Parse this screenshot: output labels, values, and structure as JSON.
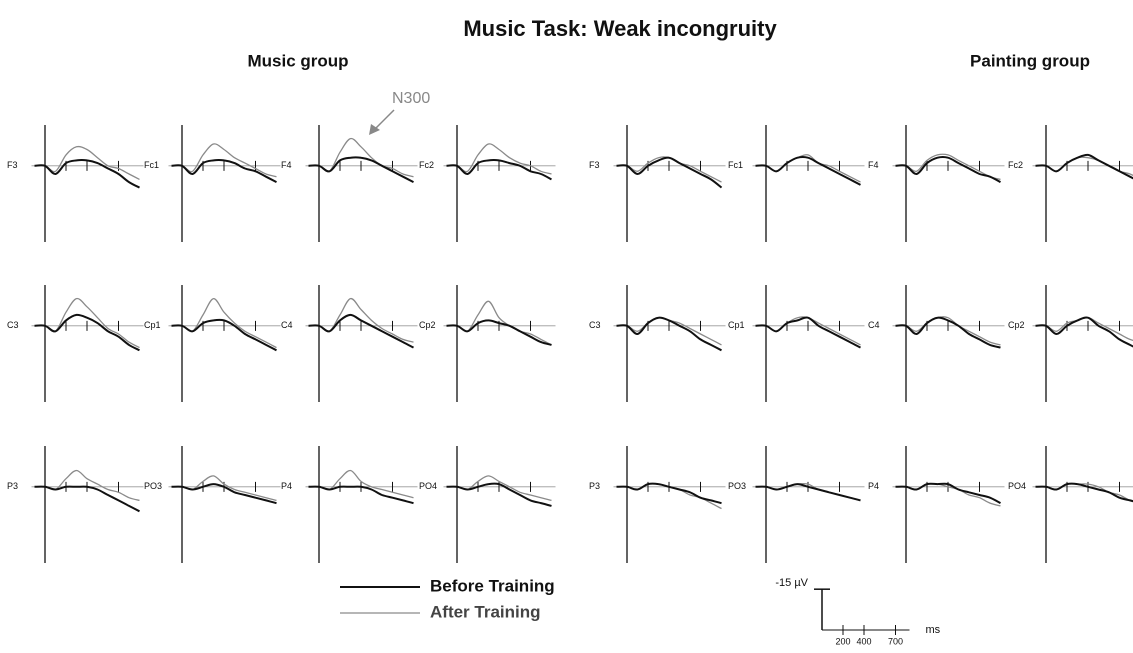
{
  "chart_data": {
    "type": "line",
    "title": "Music Task: Weak incongruity",
    "annotation": "N300",
    "x": [
      -100,
      0,
      100,
      200,
      300,
      400,
      500,
      600,
      700,
      800,
      900
    ],
    "xticks": [
      200,
      400,
      700
    ],
    "ylim": [
      28,
      -15
    ],
    "legend": [
      {
        "name": "Before Training",
        "color": "#111111"
      },
      {
        "name": "After Training",
        "color": "#8a8a8a"
      }
    ],
    "scale_bar": {
      "value": -15,
      "label": "-15 µV"
    },
    "x_unit": "ms",
    "groups": [
      {
        "title": "Music group",
        "panels": [
          {
            "label": "F3",
            "series": [
              {
                "values": [
                  0,
                  0,
                  3,
                  -1,
                  -2,
                  -2,
                  -1,
                  1,
                  3,
                  6,
                  8
                ]
              },
              {
                "values": [
                  0,
                  0,
                  2,
                  -4,
                  -7,
                  -6,
                  -3,
                  0,
                  1,
                  3,
                  5
                ]
              }
            ]
          },
          {
            "label": "Fc1",
            "series": [
              {
                "values": [
                  0,
                  0,
                  3,
                  -1,
                  -2,
                  -2,
                  -1,
                  1,
                  2,
                  4,
                  6
                ]
              },
              {
                "values": [
                  0,
                  0,
                  2,
                  -4,
                  -8,
                  -6,
                  -3,
                  -1,
                  1,
                  3,
                  4
                ]
              }
            ]
          },
          {
            "label": "F4",
            "series": [
              {
                "values": [
                  0,
                  0,
                  2,
                  -2,
                  -3,
                  -3,
                  -2,
                  0,
                  2,
                  4,
                  6
                ]
              },
              {
                "values": [
                  0,
                  0,
                  2,
                  -5,
                  -10,
                  -7,
                  -3,
                  0,
                  1,
                  3,
                  4
                ]
              }
            ]
          },
          {
            "label": "Fc2",
            "series": [
              {
                "values": [
                  0,
                  0,
                  3,
                  -1,
                  -2,
                  -2,
                  -1,
                  0,
                  2,
                  3,
                  5
                ]
              },
              {
                "values": [
                  0,
                  0,
                  2,
                  -4,
                  -8,
                  -6,
                  -3,
                  -1,
                  0,
                  2,
                  3
                ]
              }
            ]
          },
          {
            "label": "C3",
            "series": [
              {
                "values": [
                  0,
                  0,
                  2,
                  -2,
                  -4,
                  -3,
                  -1,
                  2,
                  4,
                  7,
                  9
                ]
              },
              {
                "values": [
                  0,
                  0,
                  2,
                  -5,
                  -10,
                  -7,
                  -3,
                  1,
                  3,
                  6,
                  8
                ]
              }
            ]
          },
          {
            "label": "Cp1",
            "series": [
              {
                "values": [
                  0,
                  0,
                  2,
                  -1,
                  -2,
                  -2,
                  0,
                  3,
                  5,
                  7,
                  9
                ]
              },
              {
                "values": [
                  0,
                  0,
                  2,
                  -4,
                  -10,
                  -5,
                  -1,
                  2,
                  4,
                  6,
                  8
                ]
              }
            ]
          },
          {
            "label": "C4",
            "series": [
              {
                "values": [
                  0,
                  0,
                  2,
                  -2,
                  -4,
                  -2,
                  0,
                  2,
                  4,
                  6,
                  8
                ]
              },
              {
                "values": [
                  0,
                  0,
                  2,
                  -4,
                  -10,
                  -6,
                  -2,
                  1,
                  3,
                  5,
                  6
                ]
              }
            ]
          },
          {
            "label": "Cp2",
            "series": [
              {
                "values": [
                  0,
                  0,
                  2,
                  -1,
                  -2,
                  -1,
                  0,
                  2,
                  4,
                  6,
                  7
                ]
              },
              {
                "values": [
                  0,
                  0,
                  2,
                  -4,
                  -9,
                  -3,
                  0,
                  2,
                  3,
                  5,
                  7
                ]
              }
            ]
          },
          {
            "label": "P3",
            "series": [
              {
                "values": [
                  0,
                  0,
                  1,
                  0,
                  0,
                  0,
                  1,
                  3,
                  5,
                  7,
                  9
                ]
              },
              {
                "values": [
                  0,
                  0,
                  1,
                  -3,
                  -6,
                  -3,
                  -1,
                  1,
                  2,
                  4,
                  5
                ]
              }
            ]
          },
          {
            "label": "PO3",
            "series": [
              {
                "values": [
                  0,
                  0,
                  1,
                  0,
                  -1,
                  0,
                  2,
                  3,
                  4,
                  5,
                  6
                ]
              },
              {
                "values": [
                  0,
                  0,
                  1,
                  -2,
                  -4,
                  -1,
                  1,
                  2,
                  3,
                  4,
                  5
                ]
              }
            ]
          },
          {
            "label": "P4",
            "series": [
              {
                "values": [
                  0,
                  0,
                  1,
                  0,
                  0,
                  0,
                  1,
                  3,
                  4,
                  5,
                  6
                ]
              },
              {
                "values": [
                  0,
                  0,
                  1,
                  -3,
                  -6,
                  -2,
                  0,
                  1,
                  2,
                  3,
                  4
                ]
              }
            ]
          },
          {
            "label": "PO4",
            "series": [
              {
                "values": [
                  0,
                  0,
                  1,
                  0,
                  -1,
                  -1,
                  1,
                  3,
                  5,
                  6,
                  7
                ]
              },
              {
                "values": [
                  0,
                  0,
                  1,
                  -2,
                  -4,
                  -2,
                  0,
                  2,
                  3,
                  4,
                  5
                ]
              }
            ]
          }
        ]
      },
      {
        "title": "Painting group",
        "panels": [
          {
            "label": "F3",
            "series": [
              {
                "values": [
                  0,
                  0,
                  3,
                  0,
                  -2,
                  -3,
                  -1,
                  1,
                  3,
                  5,
                  8
                ]
              },
              {
                "values": [
                  0,
                  0,
                  2,
                  -1,
                  -3,
                  -3,
                  -1,
                  0,
                  2,
                  4,
                  6
                ]
              }
            ]
          },
          {
            "label": "Fc1",
            "series": [
              {
                "values": [
                  0,
                  0,
                  2,
                  -1,
                  -3,
                  -3,
                  -1,
                  1,
                  3,
                  5,
                  7
                ]
              },
              {
                "values": [
                  0,
                  0,
                  2,
                  -1,
                  -3,
                  -4,
                  -1,
                  0,
                  2,
                  4,
                  6
                ]
              }
            ]
          },
          {
            "label": "F4",
            "series": [
              {
                "values": [
                  0,
                  0,
                  3,
                  -1,
                  -3,
                  -3,
                  -1,
                  1,
                  3,
                  4,
                  6
                ]
              },
              {
                "values": [
                  0,
                  0,
                  2,
                  -2,
                  -4,
                  -4,
                  -2,
                  0,
                  2,
                  4,
                  5
                ]
              }
            ]
          },
          {
            "label": "Fc2",
            "series": [
              {
                "values": [
                  0,
                  0,
                  2,
                  -1,
                  -3,
                  -4,
                  -2,
                  0,
                  2,
                  4,
                  6
                ]
              },
              {
                "values": [
                  0,
                  0,
                  2,
                  -1,
                  -3,
                  -3,
                  -2,
                  0,
                  2,
                  3,
                  5
                ]
              }
            ]
          },
          {
            "label": "C3",
            "series": [
              {
                "values": [
                  0,
                  0,
                  3,
                  -1,
                  -3,
                  -2,
                  0,
                  2,
                  5,
                  7,
                  9
                ]
              },
              {
                "values": [
                  0,
                  0,
                  2,
                  -1,
                  -3,
                  -2,
                  -1,
                  1,
                  3,
                  5,
                  7
                ]
              }
            ]
          },
          {
            "label": "Cp1",
            "series": [
              {
                "values": [
                  0,
                  0,
                  2,
                  -1,
                  -2,
                  -3,
                  0,
                  2,
                  4,
                  6,
                  8
                ]
              },
              {
                "values": [
                  0,
                  0,
                  2,
                  -1,
                  -3,
                  -3,
                  -1,
                  1,
                  3,
                  5,
                  7
                ]
              }
            ]
          },
          {
            "label": "C4",
            "series": [
              {
                "values": [
                  0,
                  0,
                  3,
                  -1,
                  -3,
                  -2,
                  0,
                  3,
                  5,
                  7,
                  8
                ]
              },
              {
                "values": [
                  0,
                  0,
                  2,
                  -1,
                  -3,
                  -3,
                  0,
                  2,
                  4,
                  6,
                  7
                ]
              }
            ]
          },
          {
            "label": "Cp2",
            "series": [
              {
                "values": [
                  0,
                  0,
                  3,
                  0,
                  -2,
                  -3,
                  0,
                  2,
                  5,
                  7,
                  9
                ]
              },
              {
                "values": [
                  0,
                  0,
                  2,
                  -1,
                  -2,
                  -3,
                  -1,
                  1,
                  3,
                  5,
                  6
                ]
              }
            ]
          },
          {
            "label": "P3",
            "series": [
              {
                "values": [
                  0,
                  0,
                  1,
                  -1,
                  -1,
                  0,
                  1,
                  2,
                  4,
                  5,
                  6
                ]
              },
              {
                "values": [
                  0,
                  0,
                  1,
                  -1,
                  -1,
                  0,
                  1,
                  3,
                  4,
                  6,
                  8
                ]
              }
            ]
          },
          {
            "label": "PO3",
            "series": [
              {
                "values": [
                  0,
                  0,
                  1,
                  0,
                  -1,
                  0,
                  1,
                  2,
                  3,
                  4,
                  5
                ]
              },
              {
                "values": [
                  0,
                  0,
                  1,
                  0,
                  -1,
                  -1,
                  1,
                  2,
                  3,
                  4,
                  5
                ]
              }
            ]
          },
          {
            "label": "P4",
            "series": [
              {
                "values": [
                  0,
                  0,
                  1,
                  -1,
                  -1,
                  -1,
                  1,
                  2,
                  3,
                  4,
                  6
                ]
              },
              {
                "values": [
                  0,
                  0,
                  1,
                  -1,
                  -1,
                  0,
                  1,
                  3,
                  4,
                  6,
                  7
                ]
              }
            ]
          },
          {
            "label": "PO4",
            "series": [
              {
                "values": [
                  0,
                  0,
                  1,
                  -1,
                  -1,
                  0,
                  1,
                  2,
                  4,
                  5,
                  6
                ]
              },
              {
                "values": [
                  0,
                  0,
                  1,
                  -1,
                  -1,
                  -1,
                  0,
                  2,
                  3,
                  5,
                  6
                ]
              }
            ]
          }
        ]
      }
    ]
  }
}
